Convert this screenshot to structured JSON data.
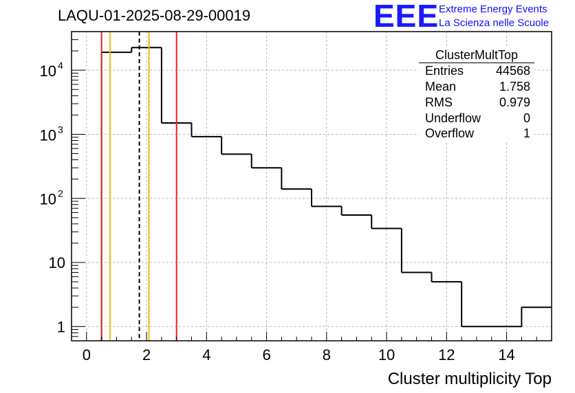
{
  "header": {
    "run_title": "LAQU-01-2025-08-29-00019"
  },
  "logo": {
    "mark": "EEE",
    "line1": "Extreme Energy Events",
    "line2": "La Scienza nelle Scuole",
    "color": "#1a1aff"
  },
  "stats_box": {
    "name": "ClusterMultTop",
    "rows": [
      {
        "key": "Entries",
        "value": "44568"
      },
      {
        "key": "Mean",
        "value": "1.758"
      },
      {
        "key": "RMS",
        "value": "0.979"
      },
      {
        "key": "Underflow",
        "value": "0"
      },
      {
        "key": "Overflow",
        "value": "1"
      }
    ]
  },
  "chart_data": {
    "type": "histogram",
    "title": "LAQU-01-2025-08-29-00019",
    "xlabel": "Cluster multiplicity Top",
    "ylabel": "",
    "xlim": [
      -0.5,
      15.5
    ],
    "ylim": [
      0.6,
      40000
    ],
    "yscale": "log",
    "grid": true,
    "bin_width": 1,
    "bins": [
      {
        "center": 0,
        "count": 0
      },
      {
        "center": 1,
        "count": 19000
      },
      {
        "center": 2,
        "count": 22500
      },
      {
        "center": 3,
        "count": 1500
      },
      {
        "center": 4,
        "count": 920
      },
      {
        "center": 5,
        "count": 490
      },
      {
        "center": 6,
        "count": 300
      },
      {
        "center": 7,
        "count": 140
      },
      {
        "center": 8,
        "count": 75
      },
      {
        "center": 9,
        "count": 55
      },
      {
        "center": 10,
        "count": 34
      },
      {
        "center": 11,
        "count": 7
      },
      {
        "center": 12,
        "count": 5
      },
      {
        "center": 13,
        "count": 1
      },
      {
        "center": 14,
        "count": 1
      },
      {
        "center": 15,
        "count": 2
      }
    ],
    "x_ticks": [
      "0",
      "2",
      "4",
      "6",
      "8",
      "10",
      "12",
      "14"
    ],
    "y_ticks": [
      {
        "value": 1,
        "label": "1"
      },
      {
        "value": 10,
        "label": "10"
      },
      {
        "value": 100,
        "base": "10",
        "exp": "2"
      },
      {
        "value": 1000,
        "base": "10",
        "exp": "3"
      },
      {
        "value": 10000,
        "base": "10",
        "exp": "4"
      }
    ],
    "vertical_lines": [
      {
        "x": 0.5,
        "color": "#e8201a",
        "style": "solid"
      },
      {
        "x": 3.0,
        "color": "#e8201a",
        "style": "solid"
      },
      {
        "x": 0.78,
        "color": "#f5b800",
        "style": "solid"
      },
      {
        "x": 2.08,
        "color": "#f5b800",
        "style": "solid"
      },
      {
        "x": 1.76,
        "color": "#000000",
        "style": "dashed"
      }
    ]
  }
}
